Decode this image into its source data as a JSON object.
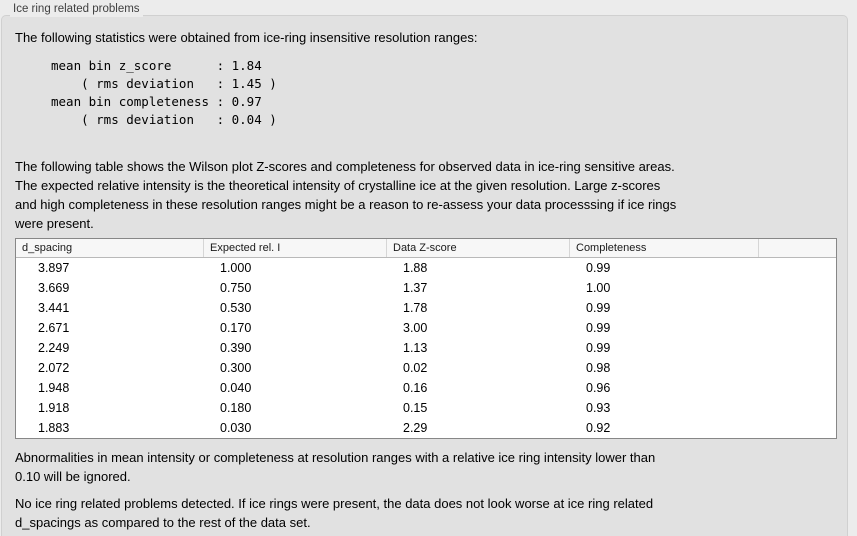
{
  "panel": {
    "title": "Ice ring related problems"
  },
  "intro": "The following statistics were obtained from ice-ring insensitive resolution ranges:",
  "stats_block": "mean bin z_score      : 1.84\n    ( rms deviation   : 1.45 )\nmean bin completeness : 0.97\n    ( rms deviation   : 0.04 )",
  "table_intro": "The following table shows the Wilson plot Z-scores and completeness for observed data in ice-ring sensitive areas.\nThe expected relative intensity is the theoretical intensity of crystalline ice at the given resolution. Large z-scores\nand high completeness in these resolution ranges might be a reason to re-assess your data processsing if ice rings\nwere present.",
  "table": {
    "columns": [
      "d_spacing",
      "Expected rel. I",
      "Data Z-score",
      "Completeness",
      ""
    ],
    "rows": [
      [
        "3.897",
        "1.000",
        "1.88",
        "0.99"
      ],
      [
        "3.669",
        "0.750",
        "1.37",
        "1.00"
      ],
      [
        "3.441",
        "0.530",
        "1.78",
        "0.99"
      ],
      [
        "2.671",
        "0.170",
        "3.00",
        "0.99"
      ],
      [
        "2.249",
        "0.390",
        "1.13",
        "0.99"
      ],
      [
        "2.072",
        "0.300",
        "0.02",
        "0.98"
      ],
      [
        "1.948",
        "0.040",
        "0.16",
        "0.96"
      ],
      [
        "1.918",
        "0.180",
        "0.15",
        "0.93"
      ],
      [
        "1.883",
        "0.030",
        "2.29",
        "0.92"
      ]
    ]
  },
  "note_ignore": "Abnormalities in mean intensity or completeness at resolution ranges with a relative ice ring intensity lower than\n0.10 will be ignored.",
  "conclusion": "No ice ring related problems detected. If ice rings were present, the data does not look worse at ice ring related\nd_spacings as compared to the rest of the data set.",
  "colors": {
    "page_bg": "#ececec",
    "panel_bg": "#e1e1e1",
    "table_bg": "#ffffff",
    "header_bg": "#f7f7f7",
    "table_border": "#878787"
  }
}
